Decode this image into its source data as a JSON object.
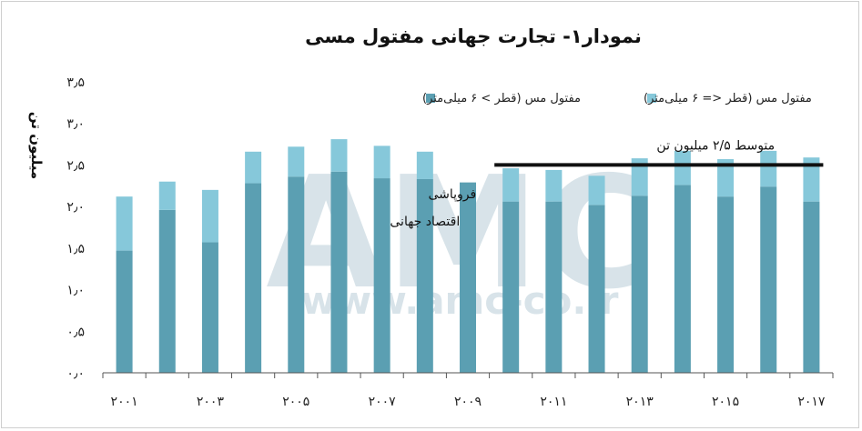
{
  "chart_data": {
    "type": "bar",
    "stacked": true,
    "title": "نمودار۱- تجارت جهانی مفتول مسی",
    "ylabel": "میلیون تن",
    "ylim": [
      0,
      3.5
    ],
    "yticks": [
      "۰٫۰",
      "۰٫۵",
      "۱٫۰",
      "۱٫۵",
      "۲٫۰",
      "۲٫۵",
      "۳٫۰",
      "۳٫۵"
    ],
    "categories": [
      "2001",
      "2002",
      "2003",
      "2004",
      "2005",
      "2006",
      "2007",
      "2008",
      "2009",
      "2010",
      "2011",
      "2012",
      "2013",
      "2014",
      "2015",
      "2016",
      "2017"
    ],
    "xtick_labels": [
      "۲۰۰۱",
      "",
      "۲۰۰۳",
      "",
      "۲۰۰۵",
      "",
      "۲۰۰۷",
      "",
      "۲۰۰۹",
      "",
      "۲۰۱۱",
      "",
      "۲۰۱۳",
      "",
      "۲۰۱۵",
      "",
      "۲۰۱۷"
    ],
    "series": [
      {
        "name": "مفتول مس (قطر > ۶ میلی‌متر)",
        "color": "#5b9fb2",
        "values": [
          1.47,
          1.96,
          1.57,
          2.28,
          2.36,
          2.42,
          2.34,
          2.33,
          2.29,
          2.06,
          2.06,
          2.02,
          2.13,
          2.26,
          2.12,
          2.24,
          2.06
        ]
      },
      {
        "name": "مفتول مس (قطر <= ۶ میلی‌متر)",
        "color": "#86c8da",
        "values": [
          0.65,
          0.34,
          0.63,
          0.38,
          0.36,
          0.39,
          0.39,
          0.33,
          0.0,
          0.4,
          0.38,
          0.35,
          0.45,
          0.41,
          0.45,
          0.43,
          0.53
        ]
      }
    ],
    "legend_position": "top",
    "grid": false,
    "annotations": {
      "average_label": "متوسط ۲/۵ میلیون تن",
      "average_value": 2.5,
      "average_range": [
        "2010",
        "2017"
      ],
      "crisis_line1": "فروپاشی",
      "crisis_line2": "اقتصاد جهانی"
    },
    "watermark": {
      "logo": "AMC",
      "url": "www.amc-co.ir"
    }
  }
}
